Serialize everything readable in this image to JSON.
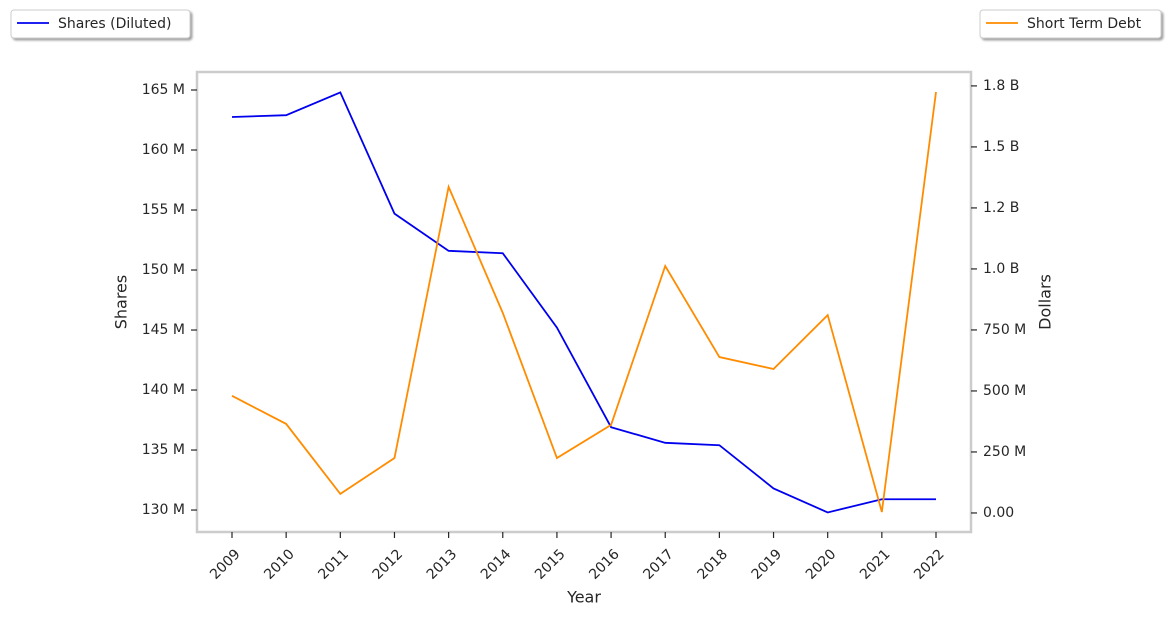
{
  "chart_data": {
    "type": "line",
    "x_label": "Year",
    "y_label": "Shares",
    "y2_label": "Dollars",
    "categories": [
      "2009",
      "2010",
      "2011",
      "2012",
      "2013",
      "2014",
      "2015",
      "2016",
      "2017",
      "2018",
      "2019",
      "2020",
      "2021",
      "2022"
    ],
    "series": [
      {
        "name": "Shares (Diluted)",
        "color": "#0000ee",
        "axis": "y",
        "legend": "upper left",
        "values": [
          162750000,
          162900000,
          164800000,
          154700000,
          151600000,
          151400000,
          145200000,
          136900000,
          135600000,
          135400000,
          131800000,
          129800000,
          130900000,
          130900000
        ]
      },
      {
        "name": "Short Term Debt",
        "color": "#ff8c00",
        "axis": "y2",
        "legend": "upper right",
        "values": [
          480000000,
          365000000,
          78000000,
          225000000,
          1336000000,
          820000000,
          225000000,
          361000000,
          1012000000,
          639000000,
          590000000,
          811000000,
          4000000,
          1725000000
        ]
      }
    ],
    "ylim": [
      128170000,
      166500000
    ],
    "yticks": [
      {
        "value": 130000000,
        "label": "130 M"
      },
      {
        "value": 135000000,
        "label": "135 M"
      },
      {
        "value": 140000000,
        "label": "140 M"
      },
      {
        "value": 145000000,
        "label": "145 M"
      },
      {
        "value": 150000000,
        "label": "150 M"
      },
      {
        "value": 155000000,
        "label": "155 M"
      },
      {
        "value": 160000000,
        "label": "160 M"
      },
      {
        "value": 165000000,
        "label": "165 M"
      }
    ],
    "y2lim": [
      -78000000,
      1807000000
    ],
    "y2ticks": [
      {
        "value": 0,
        "label": "0.00"
      },
      {
        "value": 250000000,
        "label": "250 M"
      },
      {
        "value": 500000000,
        "label": "500 M"
      },
      {
        "value": 750000000,
        "label": "750 M"
      },
      {
        "value": 1000000000,
        "label": "1.0 B"
      },
      {
        "value": 1250000000,
        "label": "1.2 B"
      },
      {
        "value": 1500000000,
        "label": "1.5 B"
      },
      {
        "value": 1750000000,
        "label": "1.8 B"
      }
    ],
    "grid": false
  }
}
